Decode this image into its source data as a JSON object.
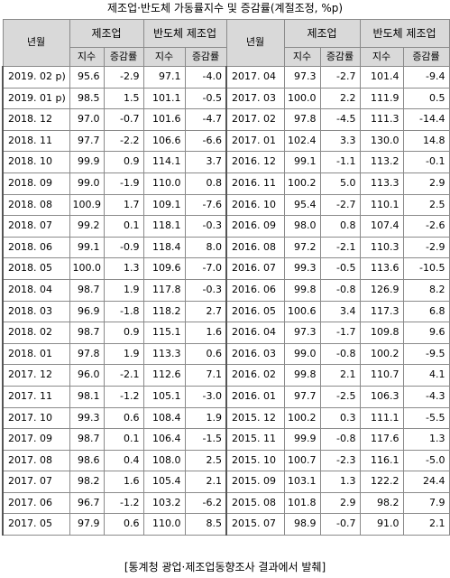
{
  "title": "제조업·반도체 가동률지수 및 증감률(계절조정, %p)",
  "headers": {
    "year_month": "년월",
    "manufacturing": "제조업",
    "semiconductor": "반도체 제조업",
    "index": "지수",
    "change": "증감률"
  },
  "rows": [
    [
      [
        "2019. 02 p)",
        "95.6",
        "-2.9",
        "97.1",
        "-4.0"
      ],
      [
        "2017. 04",
        "97.3",
        "-2.7",
        "101.4",
        "-9.4"
      ]
    ],
    [
      [
        "2019. 01 p)",
        "98.5",
        "1.5",
        "101.1",
        "-0.5"
      ],
      [
        "2017. 03",
        "100.0",
        "2.2",
        "111.9",
        "0.5"
      ]
    ],
    [
      [
        "2018. 12",
        "97.0",
        "-0.7",
        "101.6",
        "-4.7"
      ],
      [
        "2017. 02",
        "97.8",
        "-4.5",
        "111.3",
        "-14.4"
      ]
    ],
    [
      [
        "2018. 11",
        "97.7",
        "-2.2",
        "106.6",
        "-6.6"
      ],
      [
        "2017. 01",
        "102.4",
        "3.3",
        "130.0",
        "14.8"
      ]
    ],
    [
      [
        "2018. 10",
        "99.9",
        "0.9",
        "114.1",
        "3.7"
      ],
      [
        "2016. 12",
        "99.1",
        "-1.1",
        "113.2",
        "-0.1"
      ]
    ],
    [
      [
        "2018. 09",
        "99.0",
        "-1.9",
        "110.0",
        "0.8"
      ],
      [
        "2016. 11",
        "100.2",
        "5.0",
        "113.3",
        "2.9"
      ]
    ],
    [
      [
        "2018. 08",
        "100.9",
        "1.7",
        "109.1",
        "-7.6"
      ],
      [
        "2016. 10",
        "95.4",
        "-2.7",
        "110.1",
        "2.5"
      ]
    ],
    [
      [
        "2018. 07",
        "99.2",
        "0.1",
        "118.1",
        "-0.3"
      ],
      [
        "2016. 09",
        "98.0",
        "0.8",
        "107.4",
        "-2.6"
      ]
    ],
    [
      [
        "2018. 06",
        "99.1",
        "-0.9",
        "118.4",
        "8.0"
      ],
      [
        "2016. 08",
        "97.2",
        "-2.1",
        "110.3",
        "-2.9"
      ]
    ],
    [
      [
        "2018. 05",
        "100.0",
        "1.3",
        "109.6",
        "-7.0"
      ],
      [
        "2016. 07",
        "99.3",
        "-0.5",
        "113.6",
        "-10.5"
      ]
    ],
    [
      [
        "2018. 04",
        "98.7",
        "1.9",
        "117.8",
        "-0.3"
      ],
      [
        "2016. 06",
        "99.8",
        "-0.8",
        "126.9",
        "8.2"
      ]
    ],
    [
      [
        "2018. 03",
        "96.9",
        "-1.8",
        "118.2",
        "2.7"
      ],
      [
        "2016. 05",
        "100.6",
        "3.4",
        "117.3",
        "6.8"
      ]
    ],
    [
      [
        "2018. 02",
        "98.7",
        "0.9",
        "115.1",
        "1.6"
      ],
      [
        "2016. 04",
        "97.3",
        "-1.7",
        "109.8",
        "9.6"
      ]
    ],
    [
      [
        "2018. 01",
        "97.8",
        "1.9",
        "113.3",
        "0.6"
      ],
      [
        "2016. 03",
        "99.0",
        "-0.8",
        "100.2",
        "-9.5"
      ]
    ],
    [
      [
        "2017. 12",
        "96.0",
        "-2.1",
        "112.6",
        "7.1"
      ],
      [
        "2016. 02",
        "99.8",
        "2.1",
        "110.7",
        "4.1"
      ]
    ],
    [
      [
        "2017. 11",
        "98.1",
        "-1.2",
        "105.1",
        "-3.0"
      ],
      [
        "2016. 01",
        "97.7",
        "-2.5",
        "106.3",
        "-4.3"
      ]
    ],
    [
      [
        "2017. 10",
        "99.3",
        "0.6",
        "108.4",
        "1.9"
      ],
      [
        "2015. 12",
        "100.2",
        "0.3",
        "111.1",
        "-5.5"
      ]
    ],
    [
      [
        "2017. 09",
        "98.7",
        "0.1",
        "106.4",
        "-1.5"
      ],
      [
        "2015. 11",
        "99.9",
        "-0.8",
        "117.6",
        "1.3"
      ]
    ],
    [
      [
        "2017. 08",
        "98.6",
        "0.4",
        "108.0",
        "2.5"
      ],
      [
        "2015. 10",
        "100.7",
        "-2.3",
        "116.1",
        "-5.0"
      ]
    ],
    [
      [
        "2017. 07",
        "98.2",
        "1.6",
        "105.4",
        "2.1"
      ],
      [
        "2015. 09",
        "103.1",
        "1.3",
        "122.2",
        "24.4"
      ]
    ],
    [
      [
        "2017. 06",
        "96.7",
        "-1.2",
        "103.2",
        "-6.2"
      ],
      [
        "2015. 08",
        "101.8",
        "2.9",
        "98.2",
        "7.9"
      ]
    ],
    [
      [
        "2017. 05",
        "97.9",
        "0.6",
        "110.0",
        "8.5"
      ],
      [
        "2015. 07",
        "98.9",
        "-0.7",
        "91.0",
        "2.1"
      ]
    ]
  ],
  "source": "[통계청 광업·제조업동향조사 결과에서 발췌]"
}
